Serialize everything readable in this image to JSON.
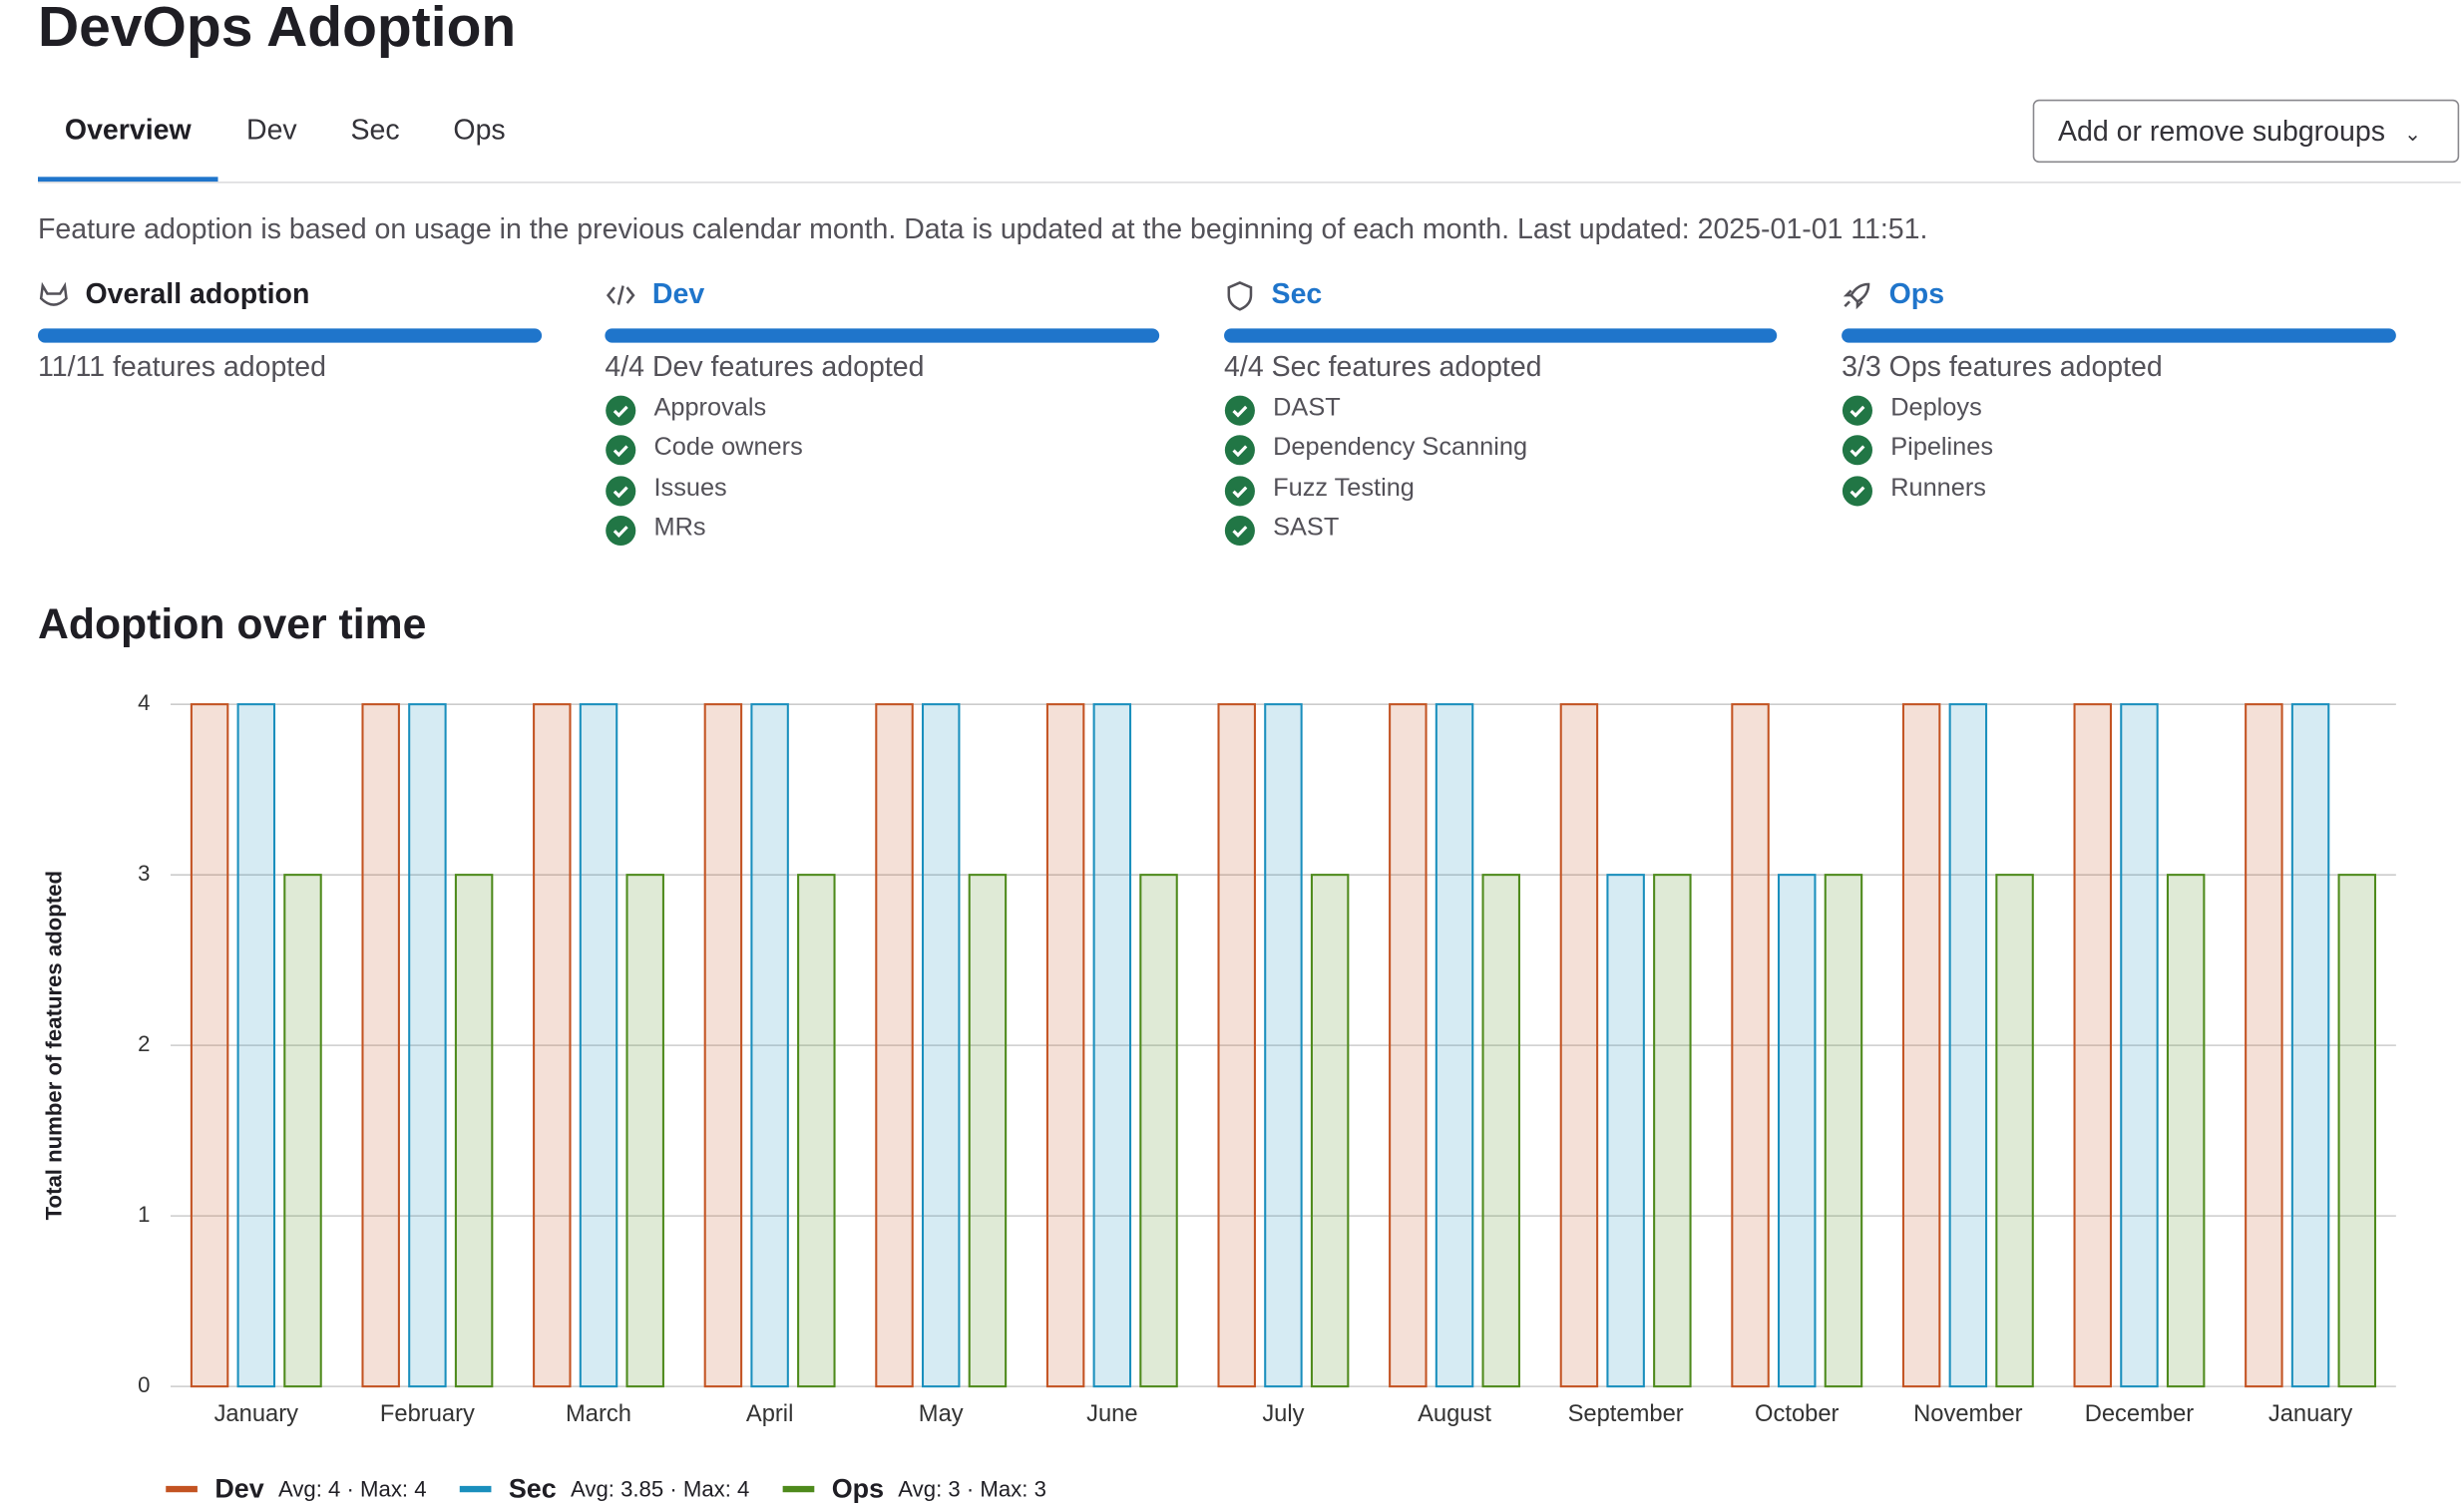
{
  "header": {
    "title": "DevOps Adoption",
    "tabs": [
      "Overview",
      "Dev",
      "Sec",
      "Ops"
    ],
    "button": "Add or remove subgroups"
  },
  "description": "Feature adoption is based on usage in the previous calendar month. Data is updated at the beginning of each month. Last updated: 2025-01-01 11:51.",
  "cards": [
    {
      "title": "Overall adoption",
      "summary": "11/11 features adopted",
      "features": []
    },
    {
      "title": "Dev",
      "summary": "4/4 Dev features adopted",
      "features": [
        "Approvals",
        "Code owners",
        "Issues",
        "MRs"
      ]
    },
    {
      "title": "Sec",
      "summary": "4/4 Sec features adopted",
      "features": [
        "DAST",
        "Dependency Scanning",
        "Fuzz Testing",
        "SAST"
      ]
    },
    {
      "title": "Ops",
      "summary": "3/3 Ops features adopted",
      "features": [
        "Deploys",
        "Pipelines",
        "Runners"
      ]
    }
  ],
  "chart_data": {
    "type": "bar",
    "title": "Adoption over time",
    "y_label": "Total number of features adopted",
    "categories": [
      "January",
      "February",
      "March",
      "April",
      "May",
      "June",
      "July",
      "August",
      "September",
      "October",
      "November",
      "December",
      "January"
    ],
    "series": [
      {
        "name": "Dev",
        "color": "#c35322",
        "summary": "Avg: 4 · Max: 4",
        "values": [
          4,
          4,
          4,
          4,
          4,
          4,
          4,
          4,
          4,
          4,
          4,
          4,
          4
        ]
      },
      {
        "name": "Sec",
        "color": "#1a8fbd",
        "summary": "Avg: 3.85 · Max: 4",
        "values": [
          4,
          4,
          4,
          4,
          4,
          4,
          4,
          4,
          3,
          3,
          4,
          4,
          4
        ]
      },
      {
        "name": "Ops",
        "color": "#4e8a1c",
        "summary": "Avg: 3 · Max: 3",
        "values": [
          3,
          3,
          3,
          3,
          3,
          3,
          3,
          3,
          3,
          3,
          3,
          3,
          3
        ]
      }
    ],
    "ylim": [
      0,
      4
    ],
    "yticks": [
      0,
      1,
      2,
      3,
      4
    ],
    "grid": true
  }
}
